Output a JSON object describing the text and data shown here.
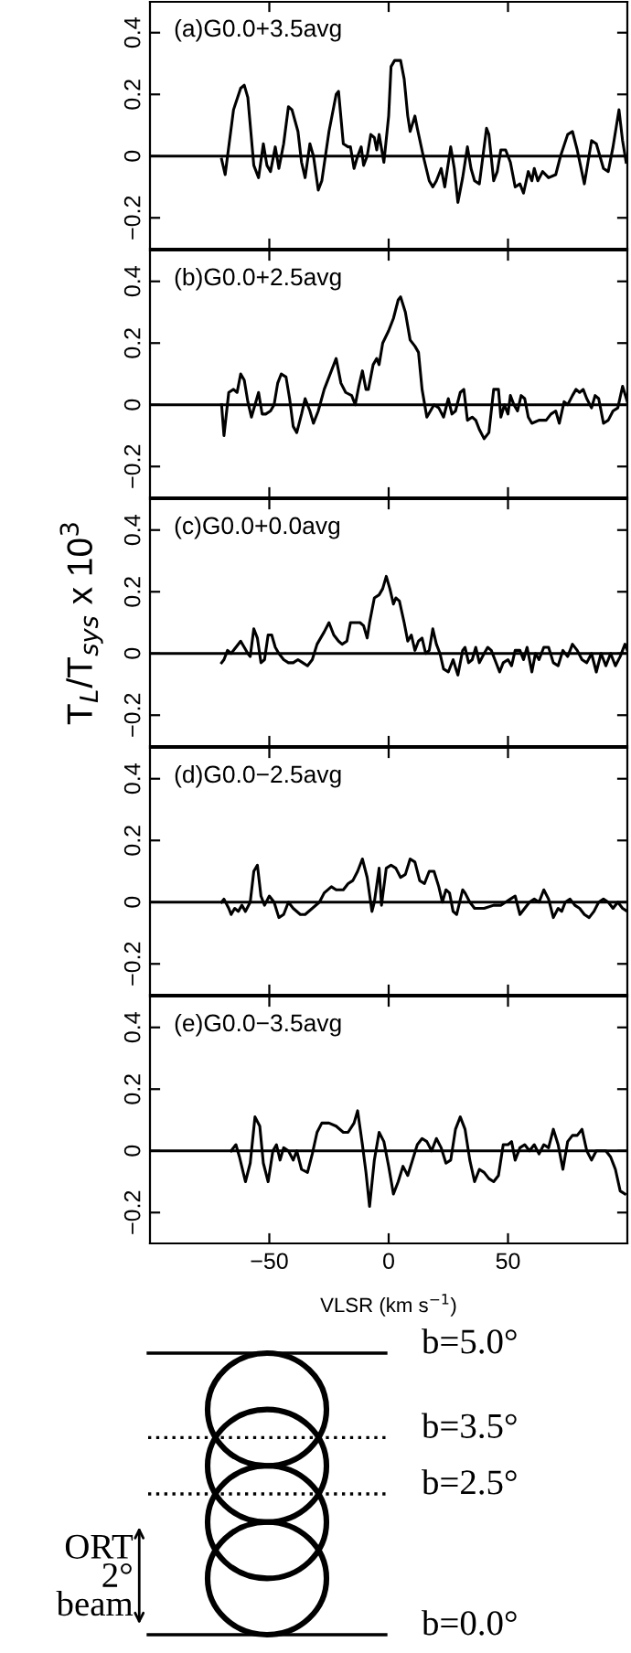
{
  "chart_data": [
    {
      "type": "line",
      "title": "(a)G0.0+3.5avg",
      "x": [
        -70,
        -68.5,
        -65,
        -62,
        -60.5,
        -59,
        -56.5,
        -54.5,
        -52.5,
        -51,
        -49.5,
        -47.5,
        -46,
        -44,
        -42,
        -40.5,
        -38,
        -36.5,
        -35,
        -33,
        -31.5,
        -29.5,
        -28,
        -25,
        -22,
        -21,
        -19,
        -17,
        -16,
        -14.5,
        -13,
        -11.5,
        -10.5,
        -9,
        -7.5,
        -6,
        -5,
        -4,
        -2,
        0,
        1,
        2.5,
        5,
        6.5,
        8,
        9,
        11,
        12,
        14.5,
        17,
        18.5,
        20,
        22,
        23.5,
        26,
        27.5,
        29,
        31,
        33,
        34.5,
        36,
        38,
        41,
        42,
        44,
        45.5,
        47,
        49,
        51,
        53,
        55,
        56.5,
        58.5,
        60,
        61,
        62.5,
        64.5,
        67,
        70,
        72,
        75,
        77,
        79,
        82,
        85,
        87,
        90,
        92,
        94,
        96.5,
        98,
        99.5
      ],
      "series": [
        {
          "color": "#000000",
          "values": [
            -0.01,
            -0.06,
            0.15,
            0.22,
            0.23,
            0.19,
            -0.03,
            -0.07,
            0.04,
            -0.03,
            -0.05,
            0.03,
            -0.04,
            0.04,
            0.16,
            0.15,
            0.08,
            -0.02,
            -0.07,
            0.04,
            0.0,
            -0.11,
            -0.08,
            0.08,
            0.2,
            0.21,
            0.04,
            0.03,
            0.03,
            -0.04,
            0.0,
            0.03,
            -0.03,
            0.0,
            0.07,
            0.06,
            0.02,
            0.07,
            -0.02,
            0.13,
            0.29,
            0.31,
            0.31,
            0.25,
            0.13,
            0.08,
            0.13,
            0.09,
            0.0,
            -0.08,
            -0.1,
            -0.08,
            -0.04,
            -0.1,
            0.03,
            -0.04,
            -0.15,
            -0.07,
            0.03,
            -0.04,
            -0.08,
            -0.09,
            0.09,
            0.07,
            -0.08,
            -0.05,
            0.02,
            0.02,
            -0.02,
            -0.1,
            -0.09,
            -0.12,
            -0.05,
            -0.08,
            -0.04,
            -0.08,
            -0.05,
            -0.07,
            -0.06,
            0.0,
            0.07,
            0.08,
            0.02,
            -0.09,
            0.05,
            0.04,
            -0.04,
            -0.05,
            0.03,
            0.15,
            0.05,
            -0.02
          ]
        }
      ],
      "xlim": [
        -100,
        100
      ],
      "ylim": [
        -0.3,
        0.5
      ],
      "xticks": [
        -50,
        0,
        50
      ],
      "yticks": [
        -0.2,
        0,
        0.2,
        0.4
      ],
      "tick_labels": "y",
      "ref_lines": [
        {
          "axis": "y",
          "value": 0
        }
      ]
    },
    {
      "type": "line",
      "title": "(b)G0.0+2.5avg",
      "x": [
        -70,
        -69,
        -67,
        -65,
        -63.5,
        -62,
        -60.5,
        -59,
        -57.5,
        -56,
        -54.5,
        -53,
        -51.5,
        -49.5,
        -48,
        -46.5,
        -45,
        -43,
        -41.5,
        -40,
        -38.5,
        -36.5,
        -35,
        -33,
        -31.5,
        -29.5,
        -27,
        -24,
        -22,
        -20,
        -18,
        -15.5,
        -14,
        -12.5,
        -11,
        -9.5,
        -8.5,
        -6.5,
        -5,
        -4,
        -2.5,
        0,
        2,
        4,
        5,
        7,
        9,
        11,
        12.5,
        14,
        16,
        17.5,
        19,
        21,
        23,
        25,
        26.5,
        28,
        30,
        31.5,
        33,
        35,
        36.5,
        38,
        40,
        42,
        44,
        46,
        47,
        48.5,
        50,
        51,
        52.5,
        54,
        55.5,
        57,
        58.5,
        60,
        63,
        66,
        68,
        70,
        71.5,
        73.5,
        75,
        77,
        78.5,
        80,
        81.5,
        83,
        85,
        86.5,
        88,
        90,
        92,
        94,
        96,
        98,
        100
      ],
      "series": [
        {
          "color": "#000000",
          "values": [
            0.0,
            -0.1,
            0.04,
            0.05,
            0.04,
            0.1,
            0.08,
            0.01,
            -0.04,
            0.0,
            0.04,
            -0.03,
            -0.03,
            -0.02,
            0.0,
            0.07,
            0.1,
            0.09,
            0.02,
            -0.07,
            -0.09,
            -0.03,
            0.02,
            -0.02,
            -0.06,
            -0.02,
            0.05,
            0.11,
            0.15,
            0.07,
            0.04,
            0.03,
            0.0,
            0.06,
            0.11,
            0.05,
            0.05,
            0.13,
            0.15,
            0.13,
            0.2,
            0.24,
            0.28,
            0.34,
            0.35,
            0.3,
            0.21,
            0.19,
            0.17,
            0.05,
            -0.04,
            -0.02,
            0.0,
            -0.01,
            -0.04,
            0.02,
            -0.03,
            -0.02,
            0.04,
            0.05,
            -0.05,
            -0.04,
            -0.05,
            -0.08,
            -0.11,
            -0.09,
            0.05,
            0.05,
            -0.04,
            0.0,
            -0.03,
            0.03,
            0.0,
            -0.02,
            0.03,
            0.02,
            -0.04,
            -0.06,
            -0.05,
            -0.05,
            -0.03,
            -0.02,
            -0.06,
            0.01,
            0.0,
            0.03,
            0.05,
            0.04,
            0.05,
            0.02,
            -0.01,
            0.03,
            0.02,
            -0.06,
            -0.05,
            -0.02,
            -0.01,
            0.06,
            0.01
          ]
        }
      ],
      "xlim": [
        -100,
        100
      ],
      "ylim": [
        -0.3,
        0.5
      ],
      "xticks": [
        -50,
        0,
        50
      ],
      "yticks": [
        -0.2,
        0,
        0.2,
        0.4
      ],
      "tick_labels": "y",
      "ref_lines": [
        {
          "axis": "y",
          "value": 0
        }
      ]
    },
    {
      "type": "line",
      "title": "(c)G0.0+0.0avg",
      "ylabel": "T$_{L}$/T$_{sys}$ x 10$^{3}$",
      "x": [
        -70,
        -69,
        -67.5,
        -66,
        -64,
        -62,
        -60.5,
        -59,
        -58,
        -56.5,
        -55,
        -53.5,
        -52,
        -50.5,
        -49,
        -47.5,
        -46,
        -44,
        -42,
        -40,
        -38,
        -36,
        -34,
        -32,
        -30,
        -27,
        -25,
        -23,
        -21,
        -19.5,
        -17.5,
        -16,
        -14,
        -12,
        -10.5,
        -9,
        -8,
        -6,
        -4,
        -2.5,
        -1,
        0.5,
        2,
        3,
        4.5,
        6.5,
        8,
        9.5,
        11,
        12.5,
        14,
        15.5,
        17,
        18.5,
        20,
        21.5,
        23,
        25,
        27,
        29,
        31,
        32,
        33.5,
        35,
        36.5,
        38,
        40,
        41.5,
        43,
        44.5,
        46.5,
        48,
        50,
        51.5,
        53,
        55,
        56.5,
        58,
        60,
        61.5,
        63,
        65,
        67,
        69,
        71,
        73,
        75,
        77,
        79,
        81,
        83,
        85,
        87,
        89,
        91,
        93,
        95,
        97,
        99,
        100
      ],
      "series": [
        {
          "color": "#000000",
          "values": [
            -0.03,
            -0.02,
            0.01,
            0.0,
            0.02,
            0.04,
            0.02,
            0.0,
            -0.01,
            0.08,
            0.05,
            -0.03,
            -0.02,
            0.06,
            0.06,
            0.02,
            0.0,
            -0.02,
            -0.03,
            -0.03,
            -0.02,
            -0.03,
            -0.04,
            -0.02,
            0.03,
            0.07,
            0.1,
            0.06,
            0.04,
            0.03,
            0.04,
            0.1,
            0.1,
            0.1,
            0.09,
            0.05,
            0.1,
            0.18,
            0.19,
            0.21,
            0.25,
            0.21,
            0.16,
            0.18,
            0.17,
            0.1,
            0.04,
            0.06,
            0.01,
            0.04,
            0.05,
            0.0,
            0.01,
            0.08,
            0.03,
            0.0,
            -0.05,
            -0.06,
            -0.02,
            -0.07,
            0.01,
            0.02,
            -0.03,
            -0.02,
            0.02,
            -0.03,
            0.0,
            0.02,
            0.01,
            -0.02,
            -0.06,
            -0.03,
            -0.02,
            -0.04,
            0.01,
            0.01,
            -0.02,
            0.02,
            -0.06,
            0.0,
            -0.02,
            0.02,
            0.02,
            -0.03,
            -0.04,
            0.01,
            -0.01,
            0.03,
            0.01,
            -0.02,
            -0.03,
            0.0,
            -0.06,
            0.0,
            -0.04,
            0.0,
            -0.04,
            -0.01,
            0.03,
            0.01
          ]
        }
      ],
      "xlim": [
        -100,
        100
      ],
      "ylim": [
        -0.3,
        0.5
      ],
      "xticks": [
        -50,
        0,
        50
      ],
      "yticks": [
        -0.2,
        0,
        0.2,
        0.4
      ],
      "tick_labels": "y",
      "ref_lines": [
        {
          "axis": "y",
          "value": 0
        }
      ]
    },
    {
      "type": "line",
      "title": "(d)G0.0−2.5avg",
      "x": [
        -70,
        -69,
        -67,
        -66,
        -64.5,
        -63,
        -61.5,
        -60,
        -58,
        -56.5,
        -55,
        -53.5,
        -52,
        -50,
        -48,
        -46,
        -44,
        -42,
        -40,
        -37,
        -35,
        -32,
        -29,
        -27,
        -24,
        -22,
        -19,
        -17,
        -15,
        -13,
        -11,
        -9,
        -7,
        -6,
        -4,
        -3,
        -1,
        1,
        3,
        5,
        7,
        9,
        11,
        13,
        15,
        17,
        19,
        21,
        22.5,
        24,
        25.5,
        27,
        28.5,
        31,
        32,
        34,
        36,
        40,
        44,
        47,
        49,
        51,
        53,
        55,
        57,
        59,
        61,
        63,
        65,
        67,
        69,
        71,
        72.5,
        74,
        76,
        78,
        80,
        82,
        84,
        86,
        88,
        90,
        92,
        94,
        96,
        98,
        100
      ],
      "series": [
        {
          "color": "#000000",
          "values": [
            0.0,
            0.01,
            -0.02,
            -0.04,
            -0.02,
            -0.03,
            -0.01,
            -0.03,
            0.0,
            0.1,
            0.12,
            0.02,
            -0.01,
            0.02,
            0.0,
            -0.05,
            -0.04,
            0.0,
            -0.02,
            -0.04,
            -0.04,
            -0.02,
            0.0,
            0.03,
            0.05,
            0.04,
            0.04,
            0.06,
            0.07,
            0.1,
            0.14,
            0.08,
            -0.03,
            0.0,
            0.11,
            -0.01,
            0.11,
            0.12,
            0.11,
            0.08,
            0.09,
            0.14,
            0.13,
            0.07,
            0.06,
            0.1,
            0.1,
            0.05,
            0.0,
            0.04,
            0.03,
            -0.03,
            -0.04,
            0.04,
            0.03,
            0.0,
            -0.02,
            -0.02,
            -0.01,
            -0.01,
            0.0,
            0.01,
            0.02,
            -0.04,
            -0.02,
            0.0,
            0.01,
            0.0,
            0.04,
            0.01,
            -0.05,
            -0.02,
            -0.03,
            0.0,
            0.01,
            -0.01,
            -0.02,
            -0.04,
            -0.05,
            -0.03,
            0.0,
            0.01,
            0.0,
            -0.02,
            0.0,
            -0.02,
            -0.03
          ]
        }
      ],
      "xlim": [
        -100,
        100
      ],
      "ylim": [
        -0.3,
        0.5
      ],
      "xticks": [
        -50,
        0,
        50
      ],
      "yticks": [
        -0.2,
        0,
        0.2,
        0.4
      ],
      "tick_labels": "y",
      "ref_lines": [
        {
          "axis": "y",
          "value": 0
        }
      ]
    },
    {
      "type": "line",
      "title": "(e)G0.0−3.5avg",
      "xlabel": "VLSR (km s$^{−1}$)",
      "x": [
        -66,
        -64,
        -62.5,
        -60,
        -58,
        -56,
        -54,
        -52.5,
        -50.5,
        -48.5,
        -47,
        -45.5,
        -44,
        -42,
        -40,
        -38.5,
        -36.5,
        -34,
        -32,
        -30,
        -28,
        -25,
        -22,
        -19,
        -17,
        -14.5,
        -13,
        -11,
        -9.5,
        -8,
        -6,
        -4,
        -2,
        0,
        2,
        4,
        6,
        8,
        10,
        12,
        14,
        16,
        18,
        20,
        22,
        24,
        26,
        28,
        30,
        32,
        34,
        36,
        38,
        40,
        42,
        44,
        46,
        48,
        50,
        51.5,
        53,
        55,
        57,
        59,
        61,
        63,
        65,
        67,
        69,
        71,
        73,
        75,
        77,
        79,
        81,
        83,
        85,
        87,
        89,
        91,
        93,
        95,
        97,
        99
      ],
      "series": [
        {
          "color": "#000000",
          "values": [
            0.0,
            0.02,
            -0.02,
            -0.1,
            -0.04,
            0.11,
            0.08,
            -0.04,
            -0.1,
            0.0,
            0.02,
            -0.03,
            0.01,
            0.0,
            -0.03,
            0.0,
            -0.06,
            -0.07,
            -0.01,
            0.06,
            0.09,
            0.09,
            0.08,
            0.06,
            0.06,
            0.09,
            0.13,
            0.02,
            -0.07,
            -0.18,
            -0.03,
            0.06,
            0.03,
            -0.05,
            -0.14,
            -0.1,
            -0.05,
            -0.08,
            -0.03,
            0.02,
            0.04,
            0.03,
            0.0,
            0.04,
            0.01,
            -0.04,
            -0.03,
            0.07,
            0.11,
            0.07,
            -0.03,
            -0.1,
            -0.06,
            -0.07,
            -0.09,
            -0.1,
            -0.08,
            0.02,
            0.02,
            0.03,
            -0.03,
            0.01,
            0.02,
            0.0,
            0.02,
            -0.01,
            0.02,
            0.01,
            0.07,
            0.02,
            -0.06,
            0.03,
            0.05,
            0.05,
            0.07,
            0.0,
            -0.03,
            0.0,
            0.0,
            0.0,
            -0.02,
            -0.06,
            -0.13,
            -0.14
          ]
        }
      ],
      "xlim": [
        -100,
        100
      ],
      "ylim": [
        -0.3,
        0.5
      ],
      "xticks": [
        -50,
        0,
        50
      ],
      "yticks": [
        -0.2,
        0,
        0.2,
        0.4
      ],
      "ref_lines": [
        {
          "axis": "y",
          "value": 0
        }
      ]
    },
    {
      "type": "other",
      "annotations": [
        "b=5.0°",
        "b=3.5°",
        "b=2.5°",
        "b=0.0°",
        "ORT\n2°\nbeam"
      ]
    }
  ]
}
